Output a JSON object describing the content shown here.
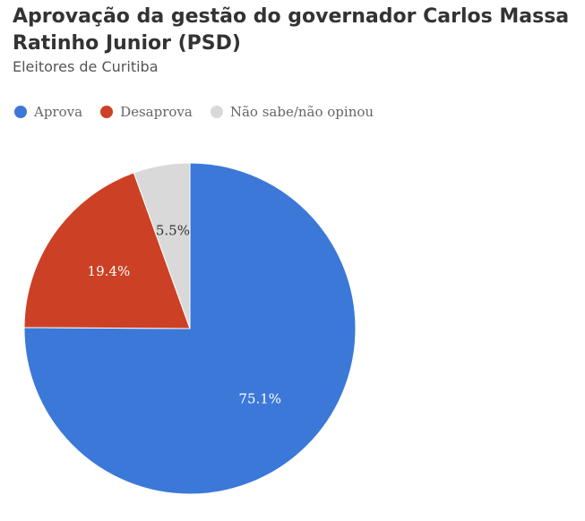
{
  "title": "Aprovação da gestão do governador Carlos Massa Ratinho Junior (PSD)",
  "subtitle": "Eleitores de Curitiba",
  "chart_data": {
    "type": "pie",
    "title": "Aprovação da gestão do governador Carlos Massa Ratinho Junior (PSD)",
    "subtitle": "Eleitores de Curitiba",
    "legend_position": "top-left",
    "slices": [
      {
        "label": "Aprova",
        "value": 75.1,
        "value_label": "75.1%",
        "color": "#3c78d8",
        "text_color": "#ffffff"
      },
      {
        "label": "Desaprova",
        "value": 19.4,
        "value_label": "19.4%",
        "color": "#cc4125",
        "text_color": "#ffffff"
      },
      {
        "label": "Não sabe/não opinou",
        "value": 5.5,
        "value_label": "5.5%",
        "color": "#d9d9d9",
        "text_color": "#333333"
      }
    ]
  }
}
